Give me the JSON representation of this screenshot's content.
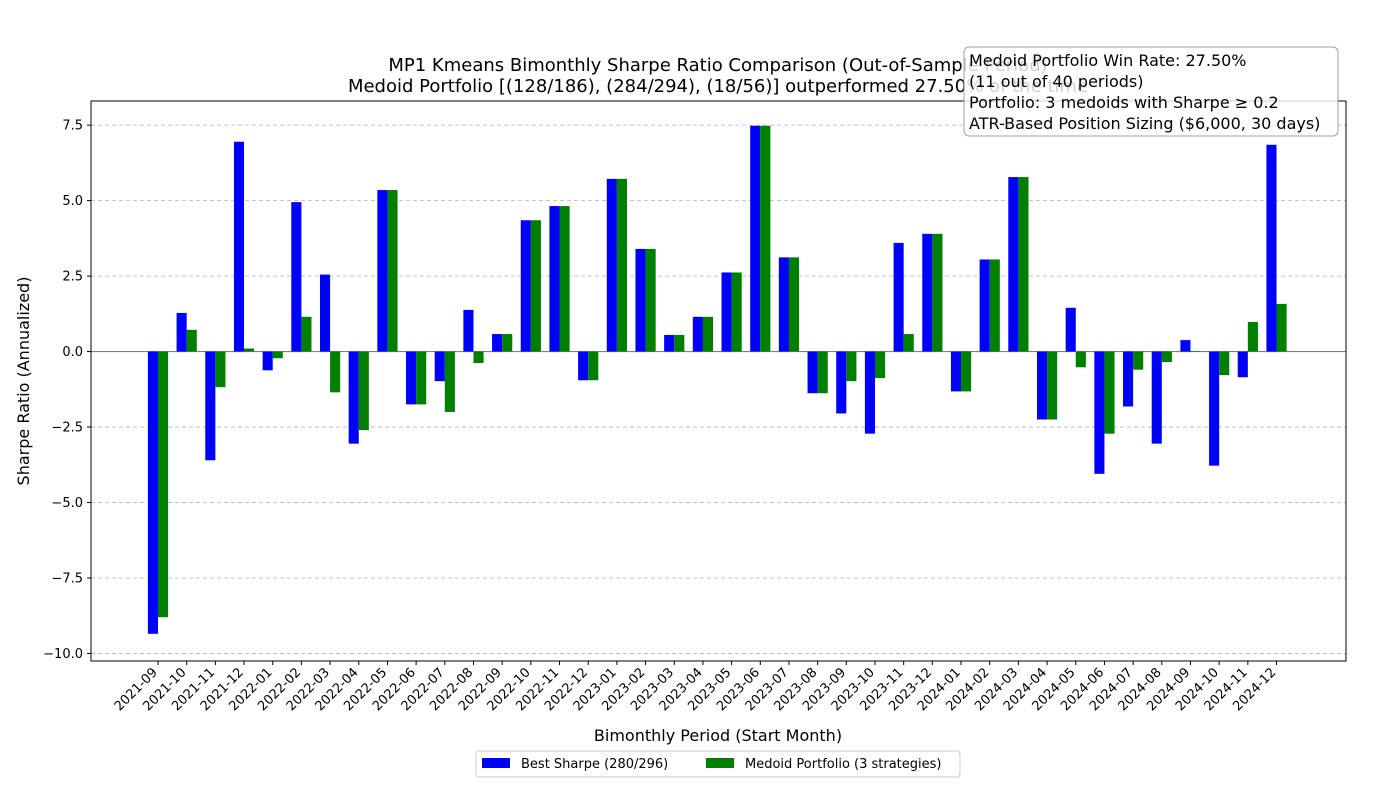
{
  "chart_data": {
    "type": "bar",
    "title": [
      "MP1 Kmeans Bimonthly Sharpe Ratio Comparison (Out-of-Sample Period)",
      "Medoid Portfolio [(128/186), (284/294), (18/56)] outperformed 27.50% of the time"
    ],
    "xlabel": "Bimonthly Period (Start Month)",
    "ylabel": "Sharpe Ratio (Annualized)",
    "ylim": [
      -10.25,
      8.3
    ],
    "yticks": [
      -10.0,
      -7.5,
      -5.0,
      -2.5,
      0.0,
      2.5,
      5.0,
      7.5
    ],
    "ytick_labels": [
      "−10.0",
      "−7.5",
      "−5.0",
      "−2.5",
      "0.0",
      "2.5",
      "5.0",
      "7.5"
    ],
    "grid": "horizontal dashed",
    "legend_position": "bottom-center",
    "categories": [
      "2021-09",
      "2021-10",
      "2021-11",
      "2021-12",
      "2022-01",
      "2022-02",
      "2022-03",
      "2022-04",
      "2022-05",
      "2022-06",
      "2022-07",
      "2022-08",
      "2022-09",
      "2022-10",
      "2022-11",
      "2022-12",
      "2023-01",
      "2023-02",
      "2023-03",
      "2023-04",
      "2023-05",
      "2023-06",
      "2023-07",
      "2023-08",
      "2023-09",
      "2023-10",
      "2023-11",
      "2023-12",
      "2024-01",
      "2024-02",
      "2024-03",
      "2024-04",
      "2024-05",
      "2024-06",
      "2024-07",
      "2024-08",
      "2024-09",
      "2024-10",
      "2024-11",
      "2024-12"
    ],
    "series": [
      {
        "name": "Best Sharpe (280/296)",
        "color": "#0000ff",
        "values": [
          -9.35,
          1.28,
          -3.6,
          6.95,
          -0.62,
          4.95,
          2.55,
          -3.05,
          5.35,
          -1.75,
          -0.98,
          1.38,
          0.58,
          4.35,
          4.82,
          -0.95,
          5.72,
          3.4,
          0.55,
          1.15,
          2.62,
          7.48,
          3.12,
          -1.38,
          -2.05,
          -2.72,
          3.6,
          3.9,
          -1.32,
          3.05,
          5.78,
          -2.25,
          1.45,
          -4.05,
          -1.82,
          -3.05,
          0.38,
          -3.78,
          -0.85,
          6.85
        ]
      },
      {
        "name": "Medoid Portfolio (3 strategies)",
        "color": "#008000",
        "values": [
          -8.8,
          0.72,
          -1.18,
          0.1,
          -0.22,
          1.15,
          -1.35,
          -2.6,
          5.35,
          -1.75,
          -2.0,
          -0.38,
          0.58,
          4.35,
          4.82,
          -0.95,
          5.72,
          3.4,
          0.55,
          1.15,
          2.62,
          7.48,
          3.12,
          -1.38,
          -0.98,
          -0.88,
          0.58,
          3.9,
          -1.32,
          3.05,
          5.78,
          -2.25,
          -0.52,
          -2.72,
          -0.6,
          -0.35,
          0.02,
          -0.78,
          0.98,
          1.58
        ]
      }
    ],
    "annotation": [
      "Medoid Portfolio Win Rate: 27.50%",
      "(11 out of 40 periods)",
      "Portfolio: 3 medoids with Sharpe ≥ 0.2",
      "ATR-Based Position Sizing ($6,000, 30 days)"
    ]
  }
}
